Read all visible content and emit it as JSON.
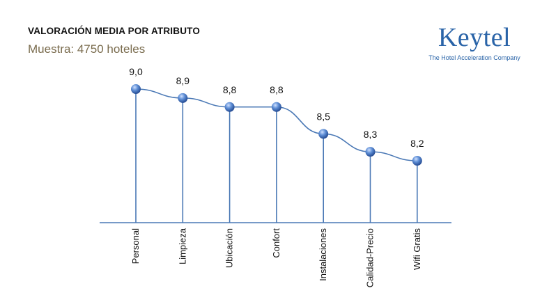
{
  "header": {
    "title": "VALORACIÓN MEDIA POR ATRIBUTO",
    "subtitle": "Muestra: 4750 hoteles"
  },
  "logo": {
    "wordmark": "Keytel",
    "tagline": "The Hotel Acceleration Company",
    "color": "#2a64a8"
  },
  "chart_data": {
    "type": "line",
    "title": "VALORACIÓN MEDIA POR ATRIBUTO",
    "subtitle": "Muestra: 4750 hoteles",
    "categories": [
      "Personal",
      "Limpieza",
      "Ubicación",
      "Confort",
      "Instalaciones",
      "Calidad-Precio",
      "Wifi Gratis"
    ],
    "values": [
      9.0,
      8.9,
      8.8,
      8.8,
      8.5,
      8.3,
      8.2
    ],
    "value_labels": [
      "9,0",
      "8,9",
      "8,8",
      "8,8",
      "8,5",
      "8,3",
      "8,2"
    ],
    "style": "lollipop-smooth-line",
    "grid": false,
    "legend": "none",
    "colors": {
      "line": "#4a78b5",
      "marker": "#3a6bbf",
      "axis": "#4a78b5"
    }
  }
}
